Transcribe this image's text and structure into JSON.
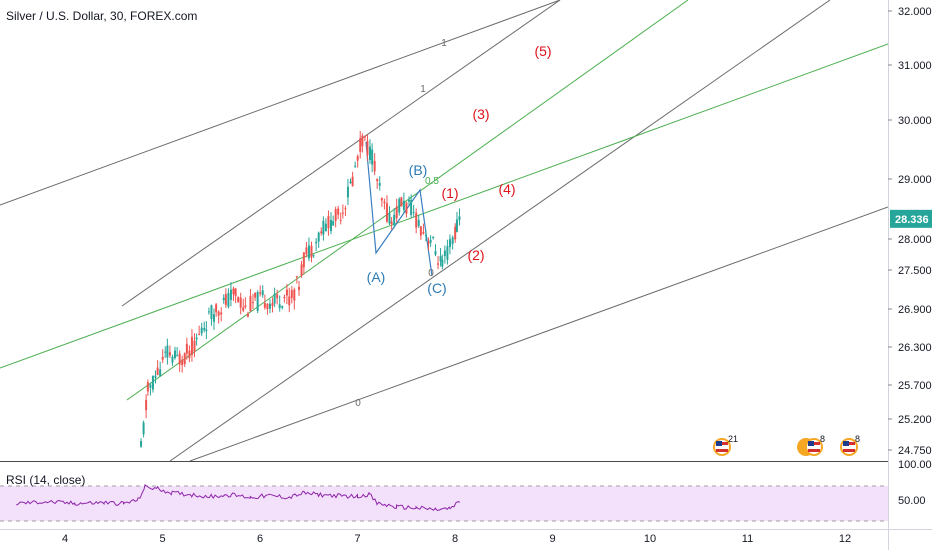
{
  "header": {
    "title": "Silver / U.S. Dollar, 30, FOREX.com"
  },
  "rsi": {
    "title": "RSI (14, close)",
    "top_label": "100.00",
    "mid_label": "50.00"
  },
  "price_axis": {
    "labels": [
      "32.000",
      "31.000",
      "30.000",
      "29.000",
      "28.000",
      "27.500",
      "26.900",
      "26.300",
      "25.700",
      "25.200",
      "24.750"
    ],
    "current_price": "28.336",
    "current_color": "#26a69a"
  },
  "time_axis": {
    "labels": [
      "4",
      "5",
      "6",
      "7",
      "8",
      "9",
      "10",
      "11",
      "12"
    ]
  },
  "colors": {
    "up": "#26a69a",
    "down": "#ef5350",
    "green_line": "#4caf50",
    "gray_line": "#6b6b6b",
    "wave_red": "#e0131b",
    "wave_blue": "#2a7bb5",
    "rsi_line": "#8e24aa",
    "rsi_band": "#f3e1fb"
  },
  "annotations": {
    "impulse_waves": [
      "(1)",
      "(2)",
      "(3)",
      "(4)",
      "(5)"
    ],
    "corrective_waves": [
      "(A)",
      "(B)",
      "(C)"
    ],
    "fib_labels": [
      "0.5",
      "0",
      "0",
      "1",
      "1"
    ]
  },
  "events": {
    "badges": [
      "21",
      "8",
      "8"
    ]
  },
  "chart_data": {
    "type": "candlestick",
    "title": "Silver / U.S. Dollar, 30, FOREX.com",
    "x_range": [
      3.5,
      12.5
    ],
    "y_range": [
      24.6,
      32.2
    ],
    "last_price": 28.336,
    "price_path": [
      [
        4.78,
        24.75
      ],
      [
        4.85,
        25.6
      ],
      [
        4.95,
        25.9
      ],
      [
        5.05,
        26.2
      ],
      [
        5.15,
        26.1
      ],
      [
        5.25,
        26.2
      ],
      [
        5.35,
        26.4
      ],
      [
        5.45,
        26.7
      ],
      [
        5.55,
        26.9
      ],
      [
        5.65,
        27.0
      ],
      [
        5.75,
        27.15
      ],
      [
        5.85,
        26.9
      ],
      [
        5.95,
        27.0
      ],
      [
        6.05,
        27.05
      ],
      [
        6.15,
        27.0
      ],
      [
        6.25,
        27.1
      ],
      [
        6.3,
        27.05
      ],
      [
        6.4,
        27.3
      ],
      [
        6.45,
        27.7
      ],
      [
        6.55,
        27.9
      ],
      [
        6.65,
        28.2
      ],
      [
        6.75,
        28.3
      ],
      [
        6.85,
        28.5
      ],
      [
        6.95,
        29.0
      ],
      [
        7.05,
        29.7
      ],
      [
        7.15,
        29.4
      ],
      [
        7.25,
        28.6
      ],
      [
        7.35,
        28.3
      ],
      [
        7.45,
        28.6
      ],
      [
        7.55,
        28.5
      ],
      [
        7.65,
        28.2
      ],
      [
        7.75,
        28.0
      ],
      [
        7.8,
        27.8
      ],
      [
        7.87,
        27.55
      ],
      [
        7.95,
        27.9
      ],
      [
        8.02,
        28.2
      ],
      [
        8.05,
        28.336
      ]
    ],
    "rsi": {
      "label": "RSI (14, close)",
      "levels": [
        30,
        70
      ],
      "path": [
        [
          3.5,
          50
        ],
        [
          3.8,
          52
        ],
        [
          4.1,
          50
        ],
        [
          4.4,
          51
        ],
        [
          4.6,
          50
        ],
        [
          4.75,
          54
        ],
        [
          4.82,
          69
        ],
        [
          4.95,
          67
        ],
        [
          5.1,
          62
        ],
        [
          5.3,
          60
        ],
        [
          5.5,
          58
        ],
        [
          5.7,
          60
        ],
        [
          5.9,
          57
        ],
        [
          6.1,
          59
        ],
        [
          6.3,
          57
        ],
        [
          6.45,
          62
        ],
        [
          6.6,
          60
        ],
        [
          6.8,
          59
        ],
        [
          7.0,
          58
        ],
        [
          7.12,
          61
        ],
        [
          7.2,
          50
        ],
        [
          7.4,
          46
        ],
        [
          7.6,
          45
        ],
        [
          7.8,
          43
        ],
        [
          7.95,
          44
        ],
        [
          8.05,
          52
        ]
      ]
    }
  }
}
